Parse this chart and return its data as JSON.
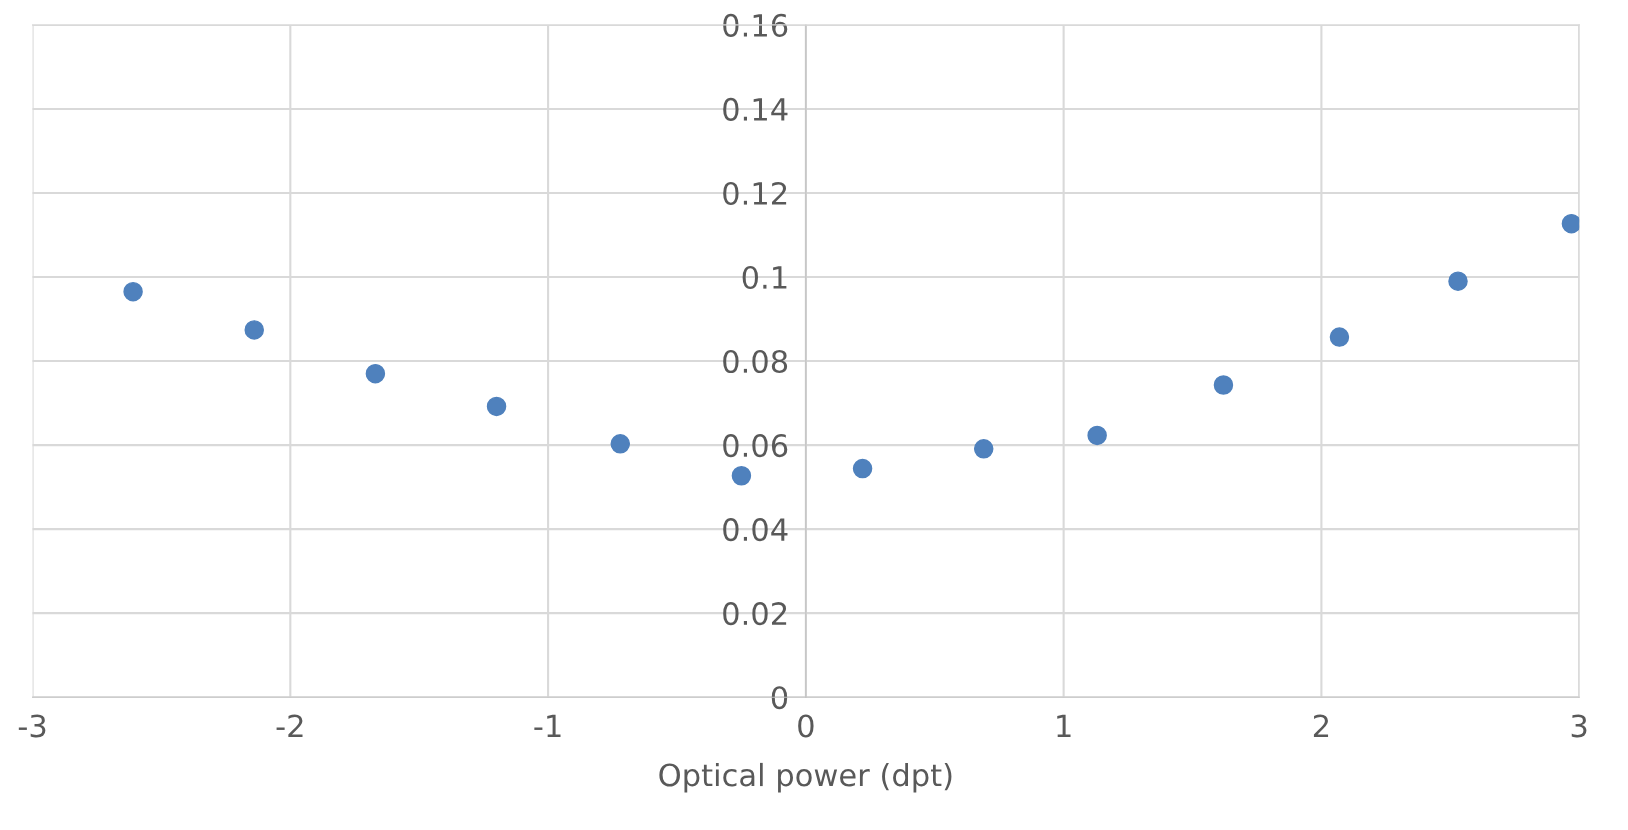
{
  "chart_data": {
    "type": "scatter",
    "xlabel": "Optical power (dpt)",
    "x": [
      -2.61,
      -2.14,
      -1.67,
      -1.2,
      -0.72,
      -0.25,
      0.22,
      0.69,
      1.13,
      1.62,
      2.07,
      2.53,
      2.97
    ],
    "series": [
      {
        "color": "#4f81bd",
        "values": [
          0.0965,
          0.0874,
          0.077,
          0.0692,
          0.0603,
          0.0527,
          0.0544,
          0.0591,
          0.0623,
          0.0743,
          0.0857,
          0.099,
          0.1127
        ]
      }
    ],
    "xlim": [
      -3,
      3
    ],
    "xticks": [
      -3,
      -2,
      -1,
      0,
      1,
      2,
      3
    ],
    "ylim": [
      0,
      0.16
    ],
    "yticks": [
      0,
      0.02,
      0.04,
      0.06,
      0.08,
      0.1,
      0.12,
      0.14,
      0.16
    ],
    "grid": true,
    "marker": "circle",
    "legend": false
  }
}
